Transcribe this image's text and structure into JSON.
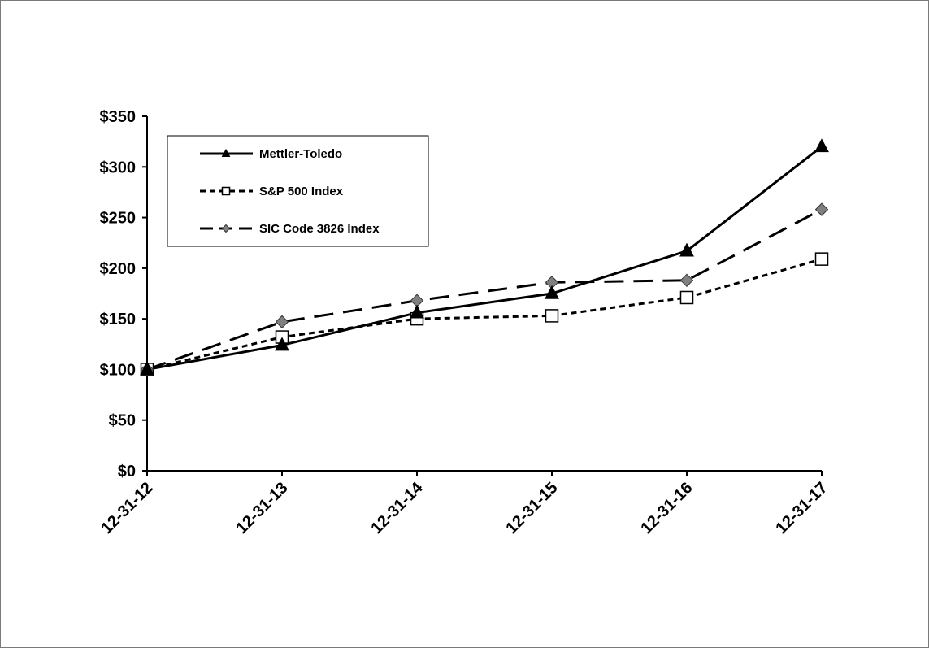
{
  "chart_data": {
    "type": "line",
    "categories": [
      "12-31-12",
      "12-31-13",
      "12-31-14",
      "12-31-15",
      "12-31-16",
      "12-31-17"
    ],
    "ylim": [
      0,
      350
    ],
    "yticks": [
      0,
      50,
      100,
      150,
      200,
      250,
      300,
      350
    ],
    "ytick_labels": [
      "$0",
      "$50",
      "$100",
      "$150",
      "$200",
      "$250",
      "$300",
      "$350"
    ],
    "grid": false,
    "legend_position": "top-left",
    "series": [
      {
        "name": "Mettler-Toledo",
        "values": [
          100,
          124,
          156,
          175,
          217,
          320
        ],
        "color": "#000000",
        "line_style": "solid",
        "marker": "triangle"
      },
      {
        "name": "S&P 500 Index",
        "values": [
          100,
          132,
          150,
          153,
          171,
          209
        ],
        "color": "#000000",
        "line_style": "dotted",
        "marker": "square-open"
      },
      {
        "name": "SIC Code 3826 Index",
        "values": [
          100,
          147,
          168,
          186,
          188,
          258
        ],
        "color": "#000000",
        "line_style": "long-dash",
        "marker": "diamond-gray",
        "marker_color": "#808080"
      }
    ]
  }
}
